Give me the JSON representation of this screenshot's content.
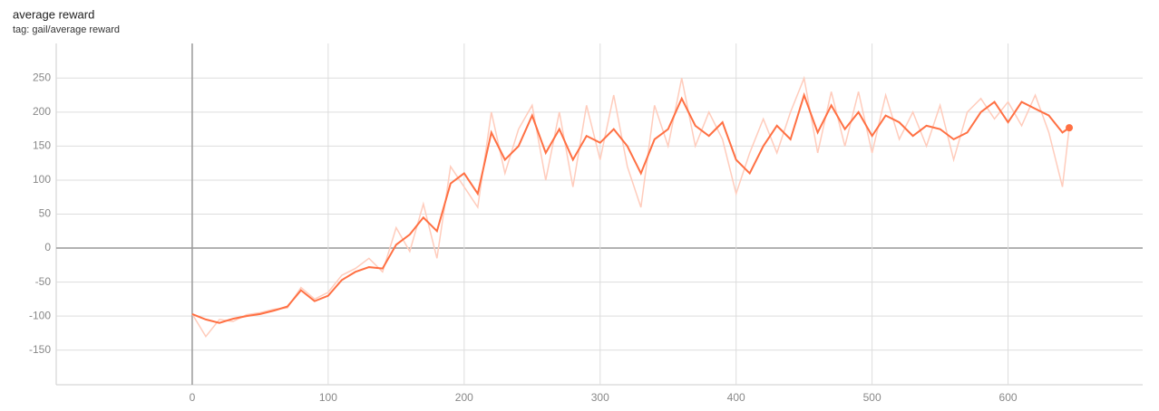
{
  "chart_data": {
    "type": "line",
    "title": "average reward",
    "subtitle": "tag: gail/average reward",
    "x": [
      0,
      10,
      20,
      30,
      40,
      50,
      60,
      70,
      80,
      90,
      100,
      110,
      120,
      130,
      140,
      150,
      160,
      170,
      180,
      190,
      200,
      210,
      220,
      230,
      240,
      250,
      260,
      270,
      280,
      290,
      300,
      310,
      320,
      330,
      340,
      350,
      360,
      370,
      380,
      390,
      400,
      410,
      420,
      430,
      440,
      450,
      460,
      470,
      480,
      490,
      500,
      510,
      520,
      530,
      540,
      550,
      560,
      570,
      580,
      590,
      600,
      610,
      620,
      630,
      640,
      645
    ],
    "series": [
      {
        "color": "#ffccbc",
        "values": [
          -97,
          -130,
          -105,
          -108,
          -98,
          -95,
          -90,
          -88,
          -58,
          -75,
          -65,
          -40,
          -30,
          -15,
          -35,
          30,
          -5,
          65,
          -15,
          120,
          90,
          60,
          200,
          110,
          175,
          210,
          100,
          200,
          90,
          210,
          130,
          225,
          120,
          60,
          210,
          150,
          250,
          150,
          200,
          160,
          80,
          140,
          190,
          140,
          200,
          250,
          140,
          230,
          150,
          230,
          140,
          225,
          160,
          200,
          150,
          210,
          130,
          200,
          220,
          190,
          215,
          180,
          225,
          170,
          90,
          177
        ]
      },
      {
        "color": "#ff7043",
        "values": [
          -97,
          -105,
          -110,
          -104,
          -100,
          -97,
          -92,
          -86,
          -62,
          -78,
          -70,
          -47,
          -35,
          -28,
          -30,
          5,
          20,
          45,
          25,
          95,
          110,
          80,
          170,
          130,
          150,
          195,
          140,
          175,
          130,
          165,
          155,
          175,
          150,
          110,
          160,
          175,
          220,
          180,
          165,
          185,
          130,
          110,
          150,
          180,
          160,
          225,
          170,
          210,
          175,
          200,
          165,
          195,
          185,
          165,
          180,
          175,
          160,
          170,
          200,
          215,
          185,
          215,
          205,
          195,
          170,
          177
        ]
      }
    ],
    "xlim": [
      -100,
      699
    ],
    "ylim": [
      -201,
      301
    ],
    "xticks": [
      0,
      100,
      200,
      300,
      400,
      500,
      600
    ],
    "yticks": [
      -150,
      -100,
      -50,
      0,
      50,
      100,
      150,
      200,
      250
    ],
    "grid": true
  }
}
